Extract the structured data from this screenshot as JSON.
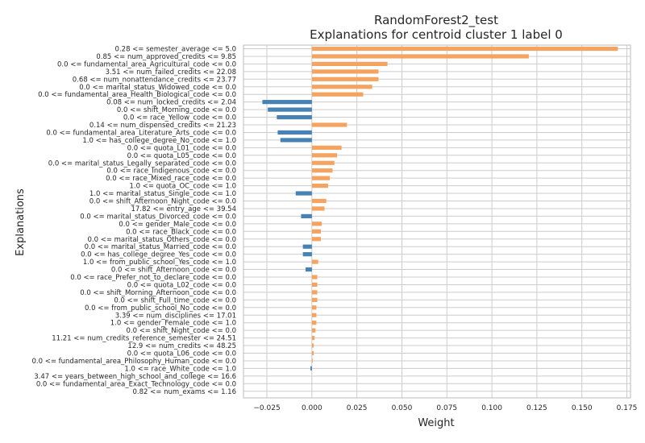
{
  "chart_data": {
    "type": "bar",
    "orientation": "horizontal",
    "title": [
      "RandomForest2_test",
      "Explanations for centroid cluster 1 label 0"
    ],
    "xlabel": "Weight",
    "ylabel": "Explanations",
    "xlim": [
      -0.038,
      0.177
    ],
    "xticks": [
      -0.025,
      0.0,
      0.025,
      0.05,
      0.075,
      0.1,
      0.125,
      0.15,
      0.175
    ],
    "xtick_labels": [
      "−0.025",
      "0.000",
      "0.025",
      "0.050",
      "0.075",
      "0.100",
      "0.125",
      "0.150",
      "0.175"
    ],
    "grid": true,
    "colors": {
      "positive": "#f4a460",
      "negative": "#4682b4",
      "grid": "#cccccc",
      "axis": "#bbbbbb"
    },
    "categories": [
      "0.28 <= semester_average <= 5.0",
      "0.85 <= num_approved_credits <= 9.85",
      "0.0 <= fundamental_area_Agricultural_code <= 0.0",
      "3.51 <= num_failed_credits <= 22.08",
      "0.68 <= num_nonattendance_credits <= 23.77",
      "0.0 <= marital_status_Widowed_code <= 0.0",
      "0.0 <= fundamental_area_Health_Biological_code <= 0.0",
      "0.08 <= num_locked_credits <= 2.04",
      "0.0 <= shift_Morning_code <= 0.0",
      "0.0 <= race_Yellow_code <= 0.0",
      "0.14 <= num_dispensed_credits <= 21.23",
      "0.0 <= fundamental_area_Literature_Arts_code <= 0.0",
      "1.0 <= has_college_degree_No_code <= 1.0",
      "0.0 <= quota_L01_code <= 0.0",
      "0.0 <= quota_L05_code <= 0.0",
      "0.0 <= marital_status_Legally_separated_code <= 0.0",
      "0.0 <= race_Indigenous_code <= 0.0",
      "0.0 <= race_Mixed_race_code <= 0.0",
      "1.0 <= quota_OC_code <= 1.0",
      "1.0 <= marital_status_Single_code <= 1.0",
      "0.0 <= shift_Afternoon_Night_code <= 0.0",
      "17.82 <= entry_age <= 39.54",
      "0.0 <= marital_status_Divorced_code <= 0.0",
      "0.0 <= gender_Male_code <= 0.0",
      "0.0 <= race_Black_code <= 0.0",
      "0.0 <= marital_status_Others_code <= 0.0",
      "0.0 <= marital_status_Married_code <= 0.0",
      "0.0 <= has_college_degree_Yes_code <= 0.0",
      "1.0 <= from_public_school_Yes_code <= 1.0",
      "0.0 <= shift_Afternoon_code <= 0.0",
      "0.0 <= race_Prefer_not_to_declare_code <= 0.0",
      "0.0 <= quota_L02_code <= 0.0",
      "0.0 <= shift_Morning_Afternoon_code <= 0.0",
      "0.0 <= shift_Full_time_code <= 0.0",
      "0.0 <= from_public_school_No_code <= 0.0",
      "3.39 <= num_disciplines <= 17.01",
      "1.0 <= gender_Female_code <= 1.0",
      "0.0 <= shift_Night_code <= 0.0",
      "11.21 <= num_credits_reference_semester <= 24.51",
      "12.9 <= num_credits <= 48.25",
      "0.0 <= quota_L06_code <= 0.0",
      "0.0 <= fundamental_area_Philosophy_Human_code <= 0.0",
      "1.0 <= race_White_code <= 1.0",
      "3.47 <= years_between_high_school_and_college <= 16.6",
      "0.0 <= fundamental_area_Exact_Technology_code <= 0.0",
      "0.82 <= num_exams <= 1.16"
    ],
    "values": [
      0.17,
      0.1205,
      0.042,
      0.037,
      0.037,
      0.0335,
      0.0285,
      -0.0275,
      -0.0245,
      -0.0195,
      0.0195,
      -0.019,
      -0.0175,
      0.0165,
      0.014,
      0.0125,
      0.0115,
      0.01,
      0.009,
      -0.009,
      0.008,
      0.007,
      -0.006,
      0.0055,
      0.005,
      0.005,
      -0.005,
      -0.005,
      0.0035,
      -0.0035,
      0.003,
      0.003,
      0.003,
      0.003,
      0.0025,
      0.0025,
      0.0025,
      0.002,
      0.0015,
      0.001,
      0.001,
      0.0005,
      -0.0008,
      0.0,
      0.0,
      0.0
    ]
  }
}
